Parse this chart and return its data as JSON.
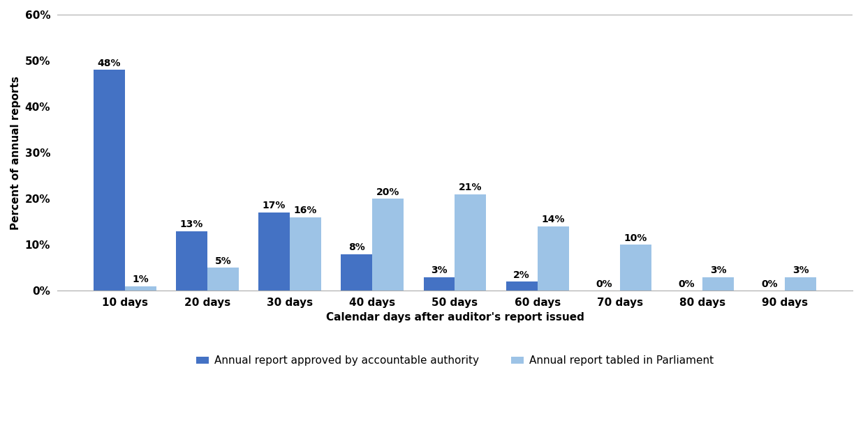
{
  "categories": [
    "10 days",
    "20 days",
    "30 days",
    "40 days",
    "50 days",
    "60 days",
    "70 days",
    "80 days",
    "90 days"
  ],
  "series1_label": "Annual report approved by accountable authority",
  "series2_label": "Annual report tabled in Parliament",
  "series1_values": [
    48,
    13,
    17,
    8,
    3,
    2,
    0,
    0,
    0
  ],
  "series2_values": [
    1,
    5,
    16,
    20,
    21,
    14,
    10,
    3,
    3
  ],
  "series1_color": "#4472C4",
  "series2_color": "#9DC3E6",
  "ylabel": "Percent of annual reports",
  "xlabel": "Calendar days after auditor's report issued",
  "ylim": [
    0,
    60
  ],
  "yticks": [
    0,
    10,
    20,
    30,
    40,
    50,
    60
  ],
  "background_color": "#ffffff",
  "bar_width": 0.38,
  "label_fontsize": 11,
  "tick_fontsize": 11,
  "annotation_fontsize": 10
}
